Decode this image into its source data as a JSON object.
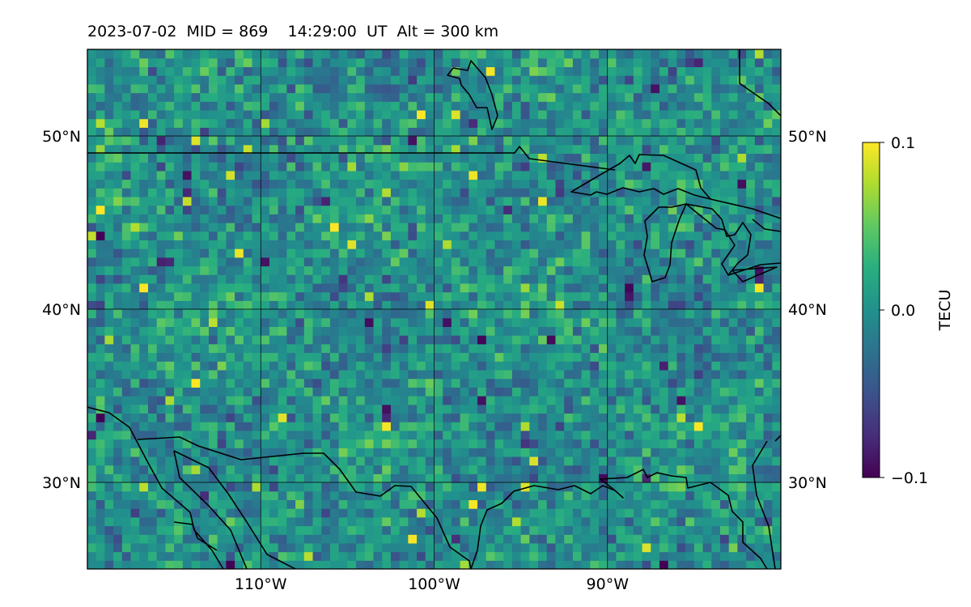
{
  "title": "2023-07-02  MID = 869    14:29:00  UT  Alt = 300 km",
  "chart_data": {
    "type": "heatmap",
    "title": "2023-07-02  MID = 869    14:29:00  UT  Alt = 300 km",
    "xlim": [
      -120,
      -80
    ],
    "ylim": [
      25,
      55
    ],
    "x_ticks": [
      {
        "value": -110,
        "label": "110°W"
      },
      {
        "value": -100,
        "label": "100°W"
      },
      {
        "value": -90,
        "label": "90°W"
      }
    ],
    "y_ticks": [
      {
        "value": 30,
        "label": "30°N"
      },
      {
        "value": 40,
        "label": "40°N"
      },
      {
        "value": 50,
        "label": "50°N"
      }
    ],
    "grid": true,
    "projection": "PlateCarree map with coastlines and borders",
    "colormap": "viridis",
    "colorbar": {
      "label": "TECU",
      "min": -0.1,
      "max": 0.1,
      "ticks": [
        {
          "value": 0.1,
          "label": "0.1"
        },
        {
          "value": 0.0,
          "label": "0.0"
        },
        {
          "value": -0.1,
          "label": "−0.1"
        }
      ],
      "position": "right"
    },
    "field_description": "gridded TEC perturbation, values mostly near 0.0 with scattered extremes",
    "notable_cells": [
      {
        "lon": -106.0,
        "lat": 44.5,
        "value": 0.1
      },
      {
        "lon": -105.0,
        "lat": 43.5,
        "value": 0.09
      },
      {
        "lon": -101.0,
        "lat": 51.0,
        "value": 0.1
      },
      {
        "lon": -119.5,
        "lat": 45.5,
        "value": 0.1
      },
      {
        "lon": -114.0,
        "lat": 49.5,
        "value": 0.09
      },
      {
        "lon": -113.0,
        "lat": 39.0,
        "value": 0.08
      },
      {
        "lon": -114.0,
        "lat": 35.5,
        "value": 0.1
      },
      {
        "lon": -119.5,
        "lat": 44.0,
        "value": -0.1
      },
      {
        "lon": -110.0,
        "lat": 42.5,
        "value": -0.09
      },
      {
        "lon": -114.5,
        "lat": 47.5,
        "value": -0.09
      },
      {
        "lon": -86.0,
        "lat": 34.5,
        "value": -0.09
      },
      {
        "lon": -87.0,
        "lat": 25.3,
        "value": -0.1
      },
      {
        "lon": -88.0,
        "lat": 26.0,
        "value": 0.09
      },
      {
        "lon": -85.0,
        "lat": 33.0,
        "value": 0.1
      }
    ]
  }
}
